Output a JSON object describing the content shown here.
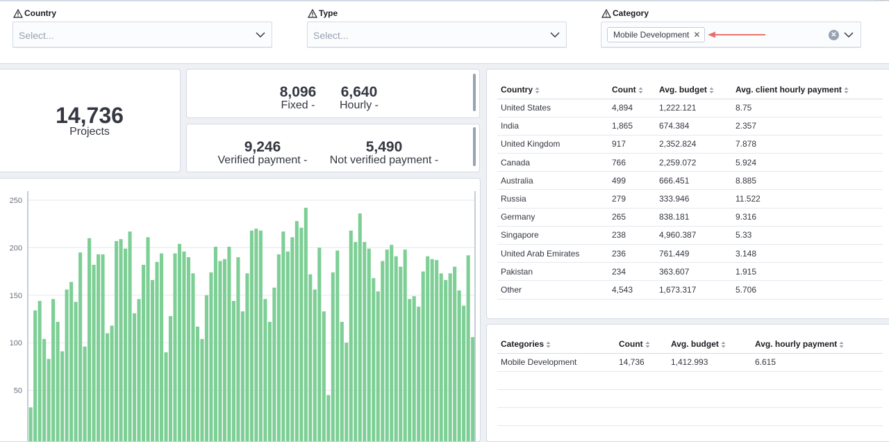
{
  "corner_icon": "⠿",
  "filters": {
    "country": {
      "label": "Country",
      "placeholder": "Select..."
    },
    "type": {
      "label": "Type",
      "placeholder": "Select..."
    },
    "category": {
      "label": "Category",
      "selected": "Mobile Development"
    }
  },
  "metrics": {
    "projects": {
      "value": "14,736",
      "label": "Projects"
    },
    "fixed": {
      "value": "8,096",
      "label": "Fixed -"
    },
    "hourly": {
      "value": "6,640",
      "label": "Hourly -"
    },
    "verified": {
      "value": "9,246",
      "label": "Verified payment -"
    },
    "not_verified": {
      "value": "5,490",
      "label": "Not verified payment -"
    }
  },
  "country_table": {
    "columns": [
      "Country",
      "Count",
      "Avg. budget",
      "Avg. client hourly payment"
    ],
    "rows": [
      [
        "United States",
        "4,894",
        "1,222.121",
        "8.75"
      ],
      [
        "India",
        "1,865",
        "674.384",
        "2.357"
      ],
      [
        "United Kingdom",
        "917",
        "2,352.824",
        "7.878"
      ],
      [
        "Canada",
        "766",
        "2,259.072",
        "5.924"
      ],
      [
        "Australia",
        "499",
        "666.451",
        "8.885"
      ],
      [
        "Russia",
        "279",
        "333.946",
        "11.522"
      ],
      [
        "Germany",
        "265",
        "838.181",
        "9.316"
      ],
      [
        "Singapore",
        "238",
        "4,960.387",
        "5.33"
      ],
      [
        "United Arab Emirates",
        "236",
        "761.449",
        "3.148"
      ],
      [
        "Pakistan",
        "234",
        "363.607",
        "1.915"
      ],
      [
        "Other",
        "4,543",
        "1,673.317",
        "5.706"
      ]
    ]
  },
  "category_table": {
    "columns": [
      "Categories",
      "Count",
      "Avg. budget",
      "Avg. hourly payment"
    ],
    "rows": [
      [
        "Mobile Development",
        "14,736",
        "1,412.993",
        "6.615"
      ]
    ]
  },
  "colors": {
    "bar": "#7dcf95",
    "annotation_arrow": "#e8706b"
  },
  "chart_data": {
    "type": "bar",
    "y_ticks": [
      "250",
      "200",
      "150",
      "100",
      "50"
    ],
    "ylim": [
      0,
      250
    ],
    "values": [
      32,
      134,
      144,
      104,
      83,
      146,
      122,
      91,
      156,
      164,
      143,
      195,
      96,
      210,
      182,
      193,
      193,
      110,
      118,
      207,
      209,
      199,
      217,
      131,
      146,
      182,
      211,
      166,
      185,
      194,
      90,
      128,
      194,
      204,
      196,
      190,
      173,
      117,
      104,
      150,
      174,
      201,
      186,
      188,
      201,
      144,
      190,
      133,
      173,
      218,
      220,
      218,
      146,
      122,
      158,
      193,
      217,
      196,
      211,
      228,
      221,
      242,
      172,
      156,
      200,
      133,
      45,
      174,
      197,
      122,
      100,
      218,
      206,
      236,
      206,
      199,
      168,
      154,
      186,
      198,
      203,
      191,
      180,
      198,
      146,
      149,
      138,
      175,
      191,
      188,
      187,
      173,
      166,
      173,
      180,
      155,
      139,
      192,
      106
    ],
    "title": "",
    "xlabel": "",
    "ylabel": ""
  }
}
